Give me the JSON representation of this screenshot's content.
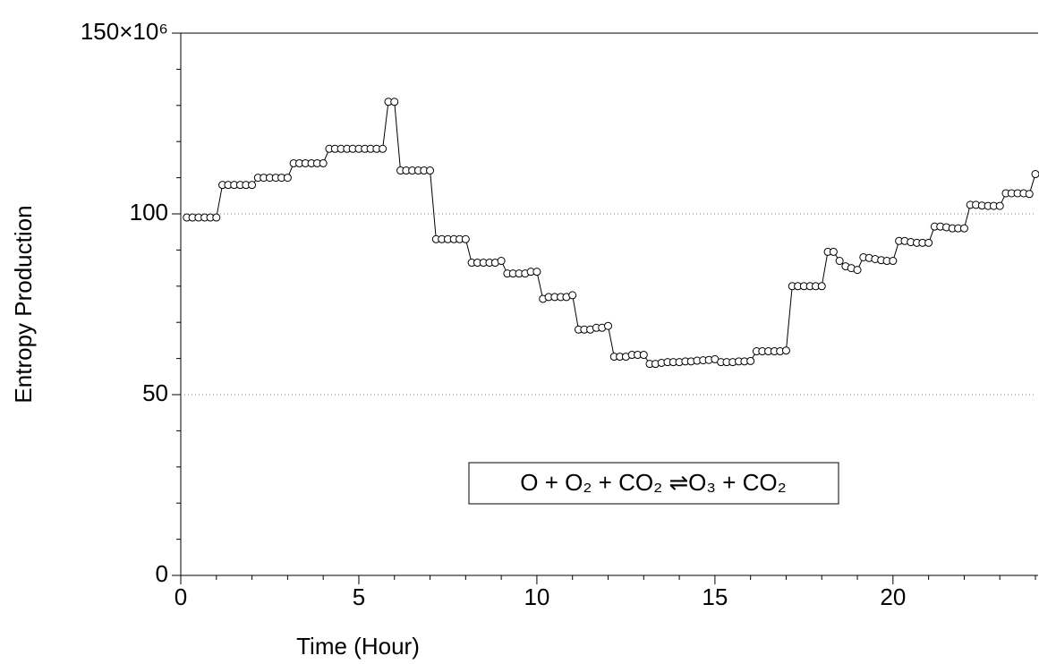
{
  "chart_data": {
    "type": "line",
    "xlabel": "Time (Hour)",
    "ylabel": "Entropy Production",
    "annotation": "O + O₂ + CO₂ ⇌O₃ + CO₂",
    "x": [
      0.17,
      0.33,
      0.5,
      0.67,
      0.83,
      1,
      1.17,
      1.33,
      1.5,
      1.67,
      1.83,
      2,
      2.17,
      2.33,
      2.5,
      2.67,
      2.83,
      3,
      3.17,
      3.33,
      3.5,
      3.67,
      3.83,
      4,
      4.17,
      4.33,
      4.5,
      4.67,
      4.83,
      5,
      5.17,
      5.33,
      5.5,
      5.67,
      5.83,
      6,
      6.17,
      6.33,
      6.5,
      6.67,
      6.83,
      7,
      7.17,
      7.33,
      7.5,
      7.67,
      7.83,
      8,
      8.17,
      8.33,
      8.5,
      8.67,
      8.83,
      9,
      9.17,
      9.33,
      9.5,
      9.67,
      9.83,
      10,
      10.17,
      10.33,
      10.5,
      10.67,
      10.83,
      11,
      11.17,
      11.33,
      11.5,
      11.67,
      11.83,
      12,
      12.17,
      12.33,
      12.5,
      12.67,
      12.83,
      13,
      13.17,
      13.33,
      13.5,
      13.67,
      13.83,
      14,
      14.17,
      14.33,
      14.5,
      14.67,
      14.83,
      15,
      15.17,
      15.33,
      15.5,
      15.67,
      15.83,
      16,
      16.17,
      16.33,
      16.5,
      16.67,
      16.83,
      17,
      17.17,
      17.33,
      17.5,
      17.67,
      17.83,
      18,
      18.17,
      18.33,
      18.5,
      18.67,
      18.83,
      19,
      19.17,
      19.33,
      19.5,
      19.67,
      19.83,
      20,
      20.17,
      20.33,
      20.5,
      20.67,
      20.83,
      21,
      21.17,
      21.33,
      21.5,
      21.67,
      21.83,
      22,
      22.17,
      22.33,
      22.5,
      22.67,
      22.83,
      23,
      23.17,
      23.33,
      23.5,
      23.67,
      23.83,
      24
    ],
    "series": [
      {
        "color": "#000000",
        "values": [
          99,
          99,
          99,
          99,
          99,
          99,
          108,
          108,
          108,
          108,
          108,
          108,
          110,
          110,
          110,
          110,
          110,
          110,
          114,
          114,
          114,
          114,
          114,
          114,
          118,
          118,
          118,
          118,
          118,
          118,
          118,
          118,
          118,
          118,
          131,
          131,
          112,
          112,
          112,
          112,
          112,
          112,
          93,
          93,
          93,
          93,
          93,
          93,
          86.5,
          86.5,
          86.5,
          86.5,
          86.5,
          87,
          83.5,
          83.5,
          83.5,
          83.5,
          84,
          84,
          76.5,
          77,
          77,
          77,
          77,
          77.5,
          68,
          68,
          68,
          68.5,
          68.5,
          69,
          60.5,
          60.5,
          60.5,
          61,
          61,
          61,
          58.5,
          58.5,
          58.8,
          59,
          59,
          59,
          59.2,
          59.2,
          59.4,
          59.5,
          59.6,
          59.8,
          59,
          59,
          59,
          59.2,
          59.2,
          59.3,
          62,
          62,
          62,
          62,
          62,
          62.2,
          80,
          80,
          80,
          80,
          80,
          80,
          89.5,
          89.5,
          87,
          85.5,
          85,
          84.5,
          88,
          87.8,
          87.5,
          87.2,
          87,
          87,
          92.5,
          92.5,
          92.2,
          92,
          92,
          92,
          96.5,
          96.5,
          96.3,
          96,
          96,
          96,
          102.5,
          102.5,
          102.3,
          102.2,
          102.2,
          102.2,
          105.7,
          105.7,
          105.7,
          105.7,
          105.5,
          111
        ]
      }
    ],
    "xlim": [
      0,
      24
    ],
    "xticks": [
      0,
      5,
      10,
      15,
      20
    ],
    "xminorticks": [
      1,
      2,
      3,
      4,
      6,
      7,
      8,
      9,
      11,
      12,
      13,
      14,
      16,
      17,
      18,
      19,
      21,
      22,
      23,
      24
    ],
    "ylim": [
      0,
      150
    ],
    "yticks": [
      0,
      50,
      100,
      {
        "value": 150,
        "label": "150×10⁶"
      }
    ],
    "yminorticks": [
      10,
      20,
      30,
      40,
      60,
      70,
      80,
      90,
      110,
      120,
      130,
      140
    ],
    "grid": true
  }
}
